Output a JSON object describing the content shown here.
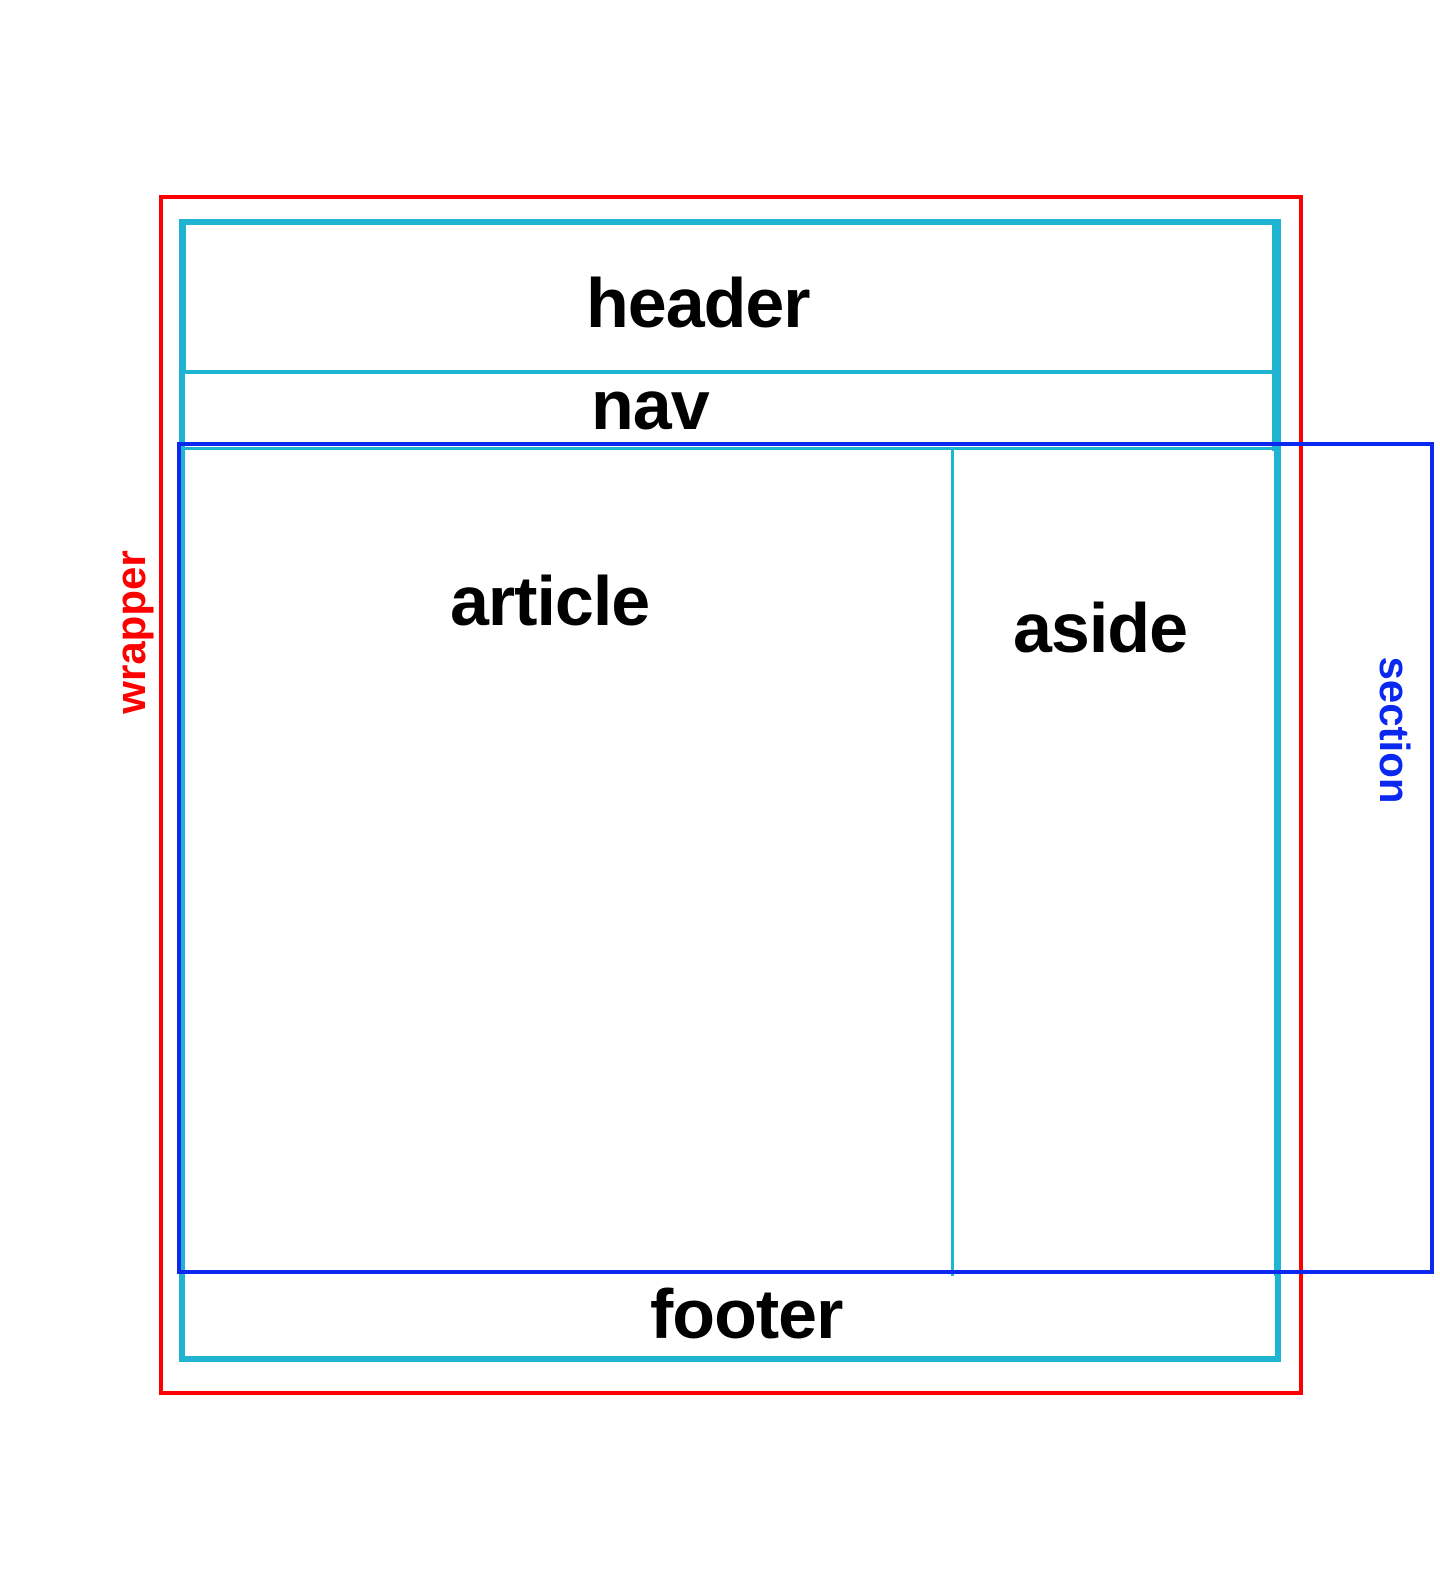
{
  "diagram": {
    "labels": {
      "wrapper": "wrapper",
      "header": "header",
      "nav": "nav",
      "article": "article",
      "aside": "aside",
      "footer": "footer",
      "section": "section"
    },
    "colors": {
      "wrapper": "#ff0000",
      "layout_regions": "#1eb4d2",
      "section": "#0a28f0",
      "text": "#000000",
      "background": "#ffffff"
    }
  }
}
